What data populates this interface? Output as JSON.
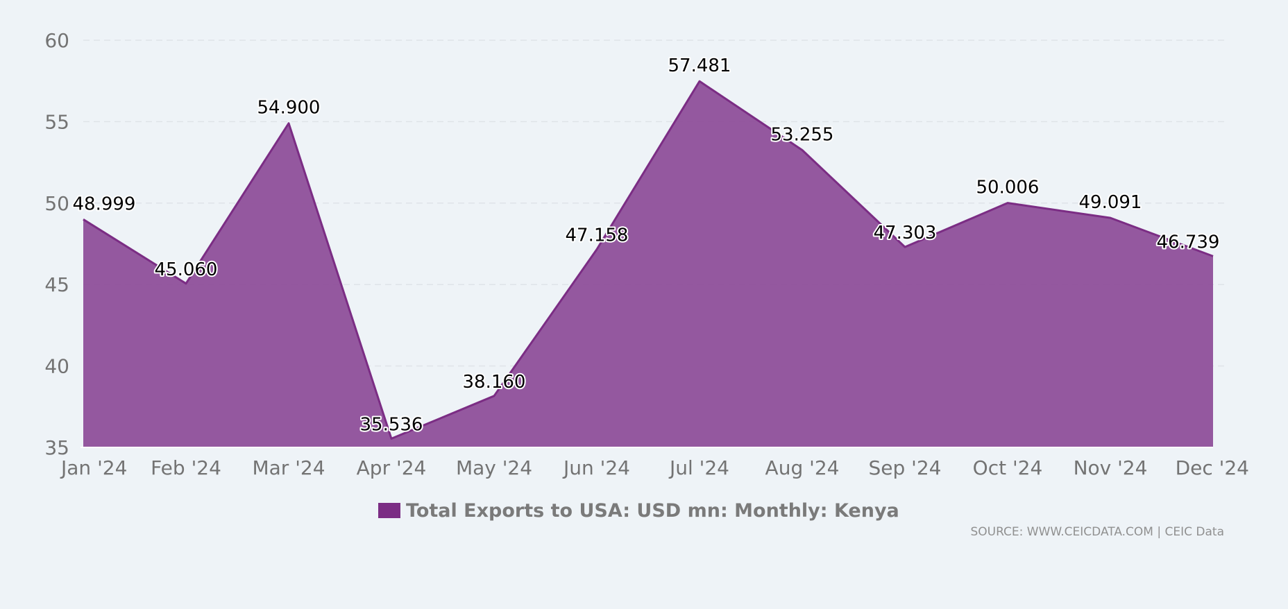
{
  "chart_data": {
    "type": "area",
    "categories": [
      "Jan '24",
      "Feb '24",
      "Mar '24",
      "Apr '24",
      "May '24",
      "Jun '24",
      "Jul '24",
      "Aug '24",
      "Sep '24",
      "Oct '24",
      "Nov '24",
      "Dec '24"
    ],
    "series": [
      {
        "name": "Total Exports to USA: USD mn: Monthly: Kenya",
        "values": [
          48.999,
          45.06,
          54.9,
          35.536,
          38.16,
          47.158,
          57.481,
          53.255,
          47.303,
          50.006,
          49.091,
          46.739
        ],
        "labels": [
          "48.999",
          "45.060",
          "54.900",
          "35.536",
          "38.160",
          "47.158",
          "57.481",
          "53.255",
          "47.303",
          "50.006",
          "49.091",
          "46.739"
        ],
        "color": "#7b2d84"
      }
    ],
    "ylim": [
      35,
      60
    ],
    "yticks": [
      35,
      40,
      45,
      50,
      55,
      60
    ],
    "grid": true,
    "legend": "bottom-center",
    "source": "SOURCE: WWW.CEICDATA.COM | CEIC Data"
  },
  "colors": {
    "background": "#eef3f7",
    "series": "#7b2d84",
    "area_fill": "#8e4f9a",
    "grid": "#dfe3e8"
  }
}
